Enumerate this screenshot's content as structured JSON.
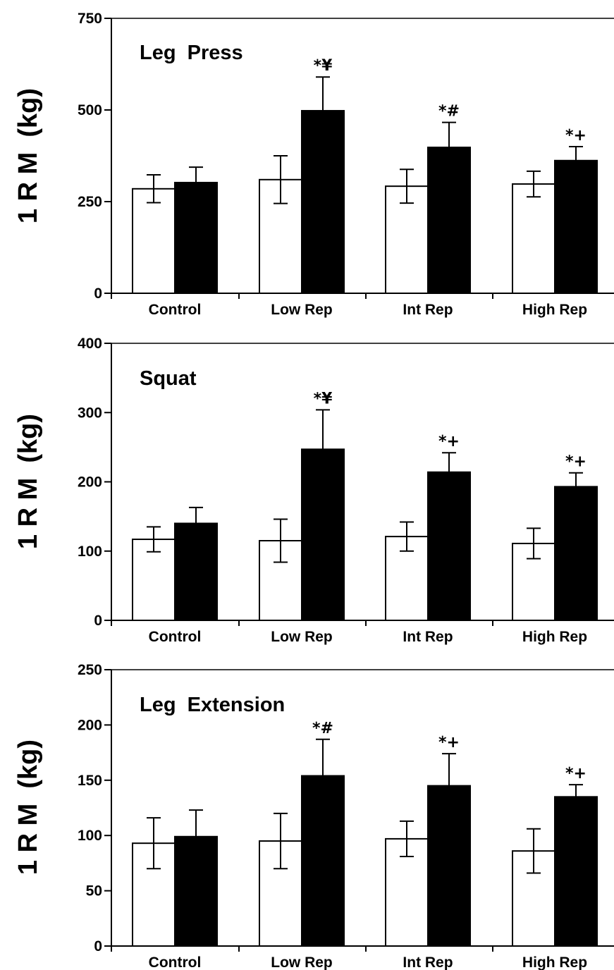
{
  "chart_data": [
    {
      "type": "bar",
      "title": "Leg  Press",
      "ylabel": "1 R M  (kg)",
      "xlabel": "",
      "ylim": [
        0,
        750
      ],
      "yticks": [
        0,
        250,
        500,
        750
      ],
      "categories": [
        "Control",
        "Low Rep",
        "Int Rep",
        "High Rep"
      ],
      "series": [
        {
          "fill": "#ffffff",
          "values": [
            285,
            310,
            292,
            298
          ],
          "errors": [
            38,
            65,
            46,
            35
          ]
        },
        {
          "fill": "#000000",
          "values": [
            302,
            498,
            398,
            362
          ],
          "errors": [
            42,
            92,
            68,
            38
          ]
        }
      ],
      "annotations": [
        "*¥",
        "*#",
        "*+"
      ],
      "annotation_categories": [
        1,
        2,
        3
      ]
    },
    {
      "type": "bar",
      "title": "Squat",
      "ylabel": "1 R M  (kg)",
      "xlabel": "",
      "ylim": [
        0,
        400
      ],
      "yticks": [
        0,
        100,
        200,
        300,
        400
      ],
      "categories": [
        "Control",
        "Low Rep",
        "Int Rep",
        "High Rep"
      ],
      "series": [
        {
          "fill": "#ffffff",
          "values": [
            117,
            115,
            121,
            111
          ],
          "errors": [
            18,
            31,
            21,
            22
          ]
        },
        {
          "fill": "#000000",
          "values": [
            140,
            247,
            214,
            193
          ],
          "errors": [
            23,
            57,
            28,
            20
          ]
        }
      ],
      "annotations": [
        "*¥",
        "*+",
        "*+"
      ],
      "annotation_categories": [
        1,
        2,
        3
      ]
    },
    {
      "type": "bar",
      "title": "Leg  Extension",
      "ylabel": "1 R M  (kg)",
      "xlabel": "",
      "ylim": [
        0,
        250
      ],
      "yticks": [
        0,
        50,
        100,
        150,
        200,
        250
      ],
      "categories": [
        "Control",
        "Low Rep",
        "Int Rep",
        "High Rep"
      ],
      "series": [
        {
          "fill": "#ffffff",
          "values": [
            93,
            95,
            97,
            86
          ],
          "errors": [
            23,
            25,
            16,
            20
          ]
        },
        {
          "fill": "#000000",
          "values": [
            99,
            154,
            145,
            135
          ],
          "errors": [
            24,
            33,
            29,
            11
          ]
        }
      ],
      "annotations": [
        "*#",
        "*+",
        "*+"
      ],
      "annotation_categories": [
        1,
        2,
        3
      ]
    }
  ]
}
